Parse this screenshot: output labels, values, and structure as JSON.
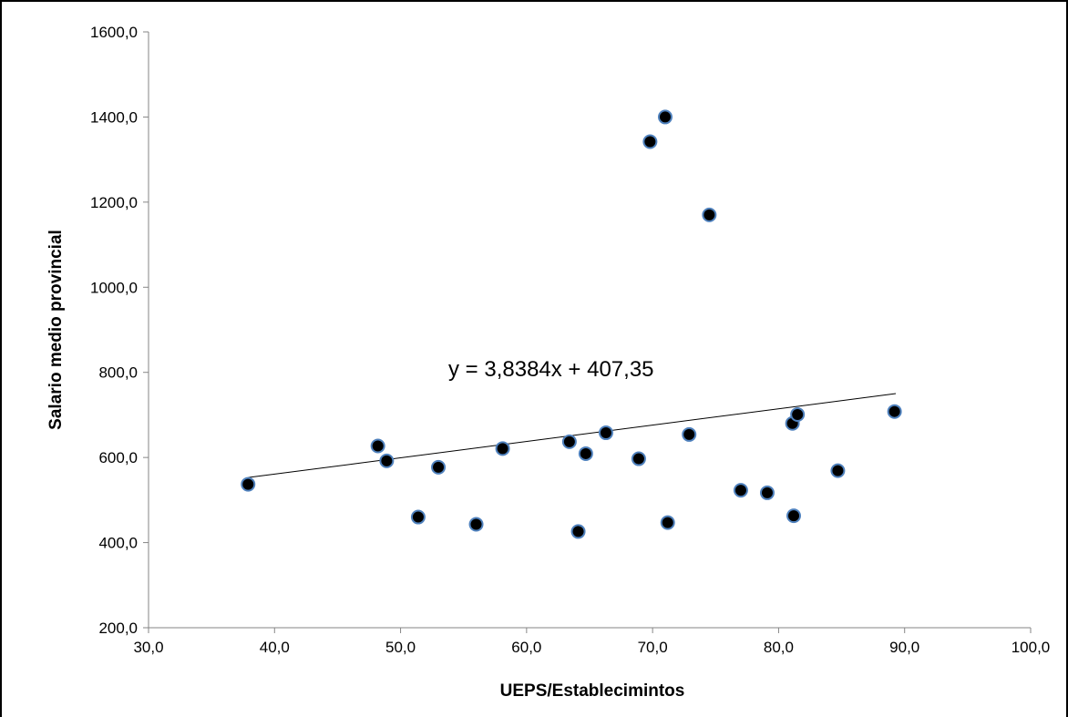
{
  "chart_data": {
    "type": "scatter",
    "title": "",
    "xlabel": "UEPS/Establecimintos",
    "ylabel": "Salario medio provincial",
    "xlim": [
      30,
      100
    ],
    "ylim": [
      200,
      1600
    ],
    "x_ticks": [
      30,
      40,
      50,
      60,
      70,
      80,
      90,
      100
    ],
    "y_ticks": [
      200,
      400,
      600,
      800,
      1000,
      1200,
      1400,
      1600
    ],
    "x_tick_labels": [
      "30,0",
      "40,0",
      "50,0",
      "60,0",
      "70,0",
      "80,0",
      "90,0",
      "100,0"
    ],
    "y_tick_labels": [
      "200,0",
      "400,0",
      "600,0",
      "800,0",
      "1000,0",
      "1200,0",
      "1400,0",
      "1600,0"
    ],
    "grid": false,
    "legend": "none",
    "point_fill": "#000000",
    "point_stroke": "#4f81bd",
    "trendline": {
      "slope": 3.8384,
      "intercept": 407.35,
      "x_range": [
        37.9,
        89.3
      ],
      "equation_label": "y = 3,8384x + 407,35",
      "color": "#000000"
    },
    "points": [
      {
        "x": 37.9,
        "y": 537
      },
      {
        "x": 48.2,
        "y": 627
      },
      {
        "x": 48.9,
        "y": 592
      },
      {
        "x": 51.4,
        "y": 460
      },
      {
        "x": 53.0,
        "y": 577
      },
      {
        "x": 56.0,
        "y": 443
      },
      {
        "x": 58.1,
        "y": 621
      },
      {
        "x": 63.4,
        "y": 637
      },
      {
        "x": 64.1,
        "y": 426
      },
      {
        "x": 64.7,
        "y": 609
      },
      {
        "x": 66.3,
        "y": 658
      },
      {
        "x": 68.9,
        "y": 597
      },
      {
        "x": 69.8,
        "y": 1342
      },
      {
        "x": 71.0,
        "y": 1400
      },
      {
        "x": 71.2,
        "y": 447
      },
      {
        "x": 72.9,
        "y": 654
      },
      {
        "x": 74.5,
        "y": 1170
      },
      {
        "x": 77.0,
        "y": 523
      },
      {
        "x": 79.1,
        "y": 517
      },
      {
        "x": 81.1,
        "y": 680
      },
      {
        "x": 81.2,
        "y": 463
      },
      {
        "x": 81.5,
        "y": 701
      },
      {
        "x": 84.7,
        "y": 569
      },
      {
        "x": 89.2,
        "y": 708
      }
    ]
  }
}
